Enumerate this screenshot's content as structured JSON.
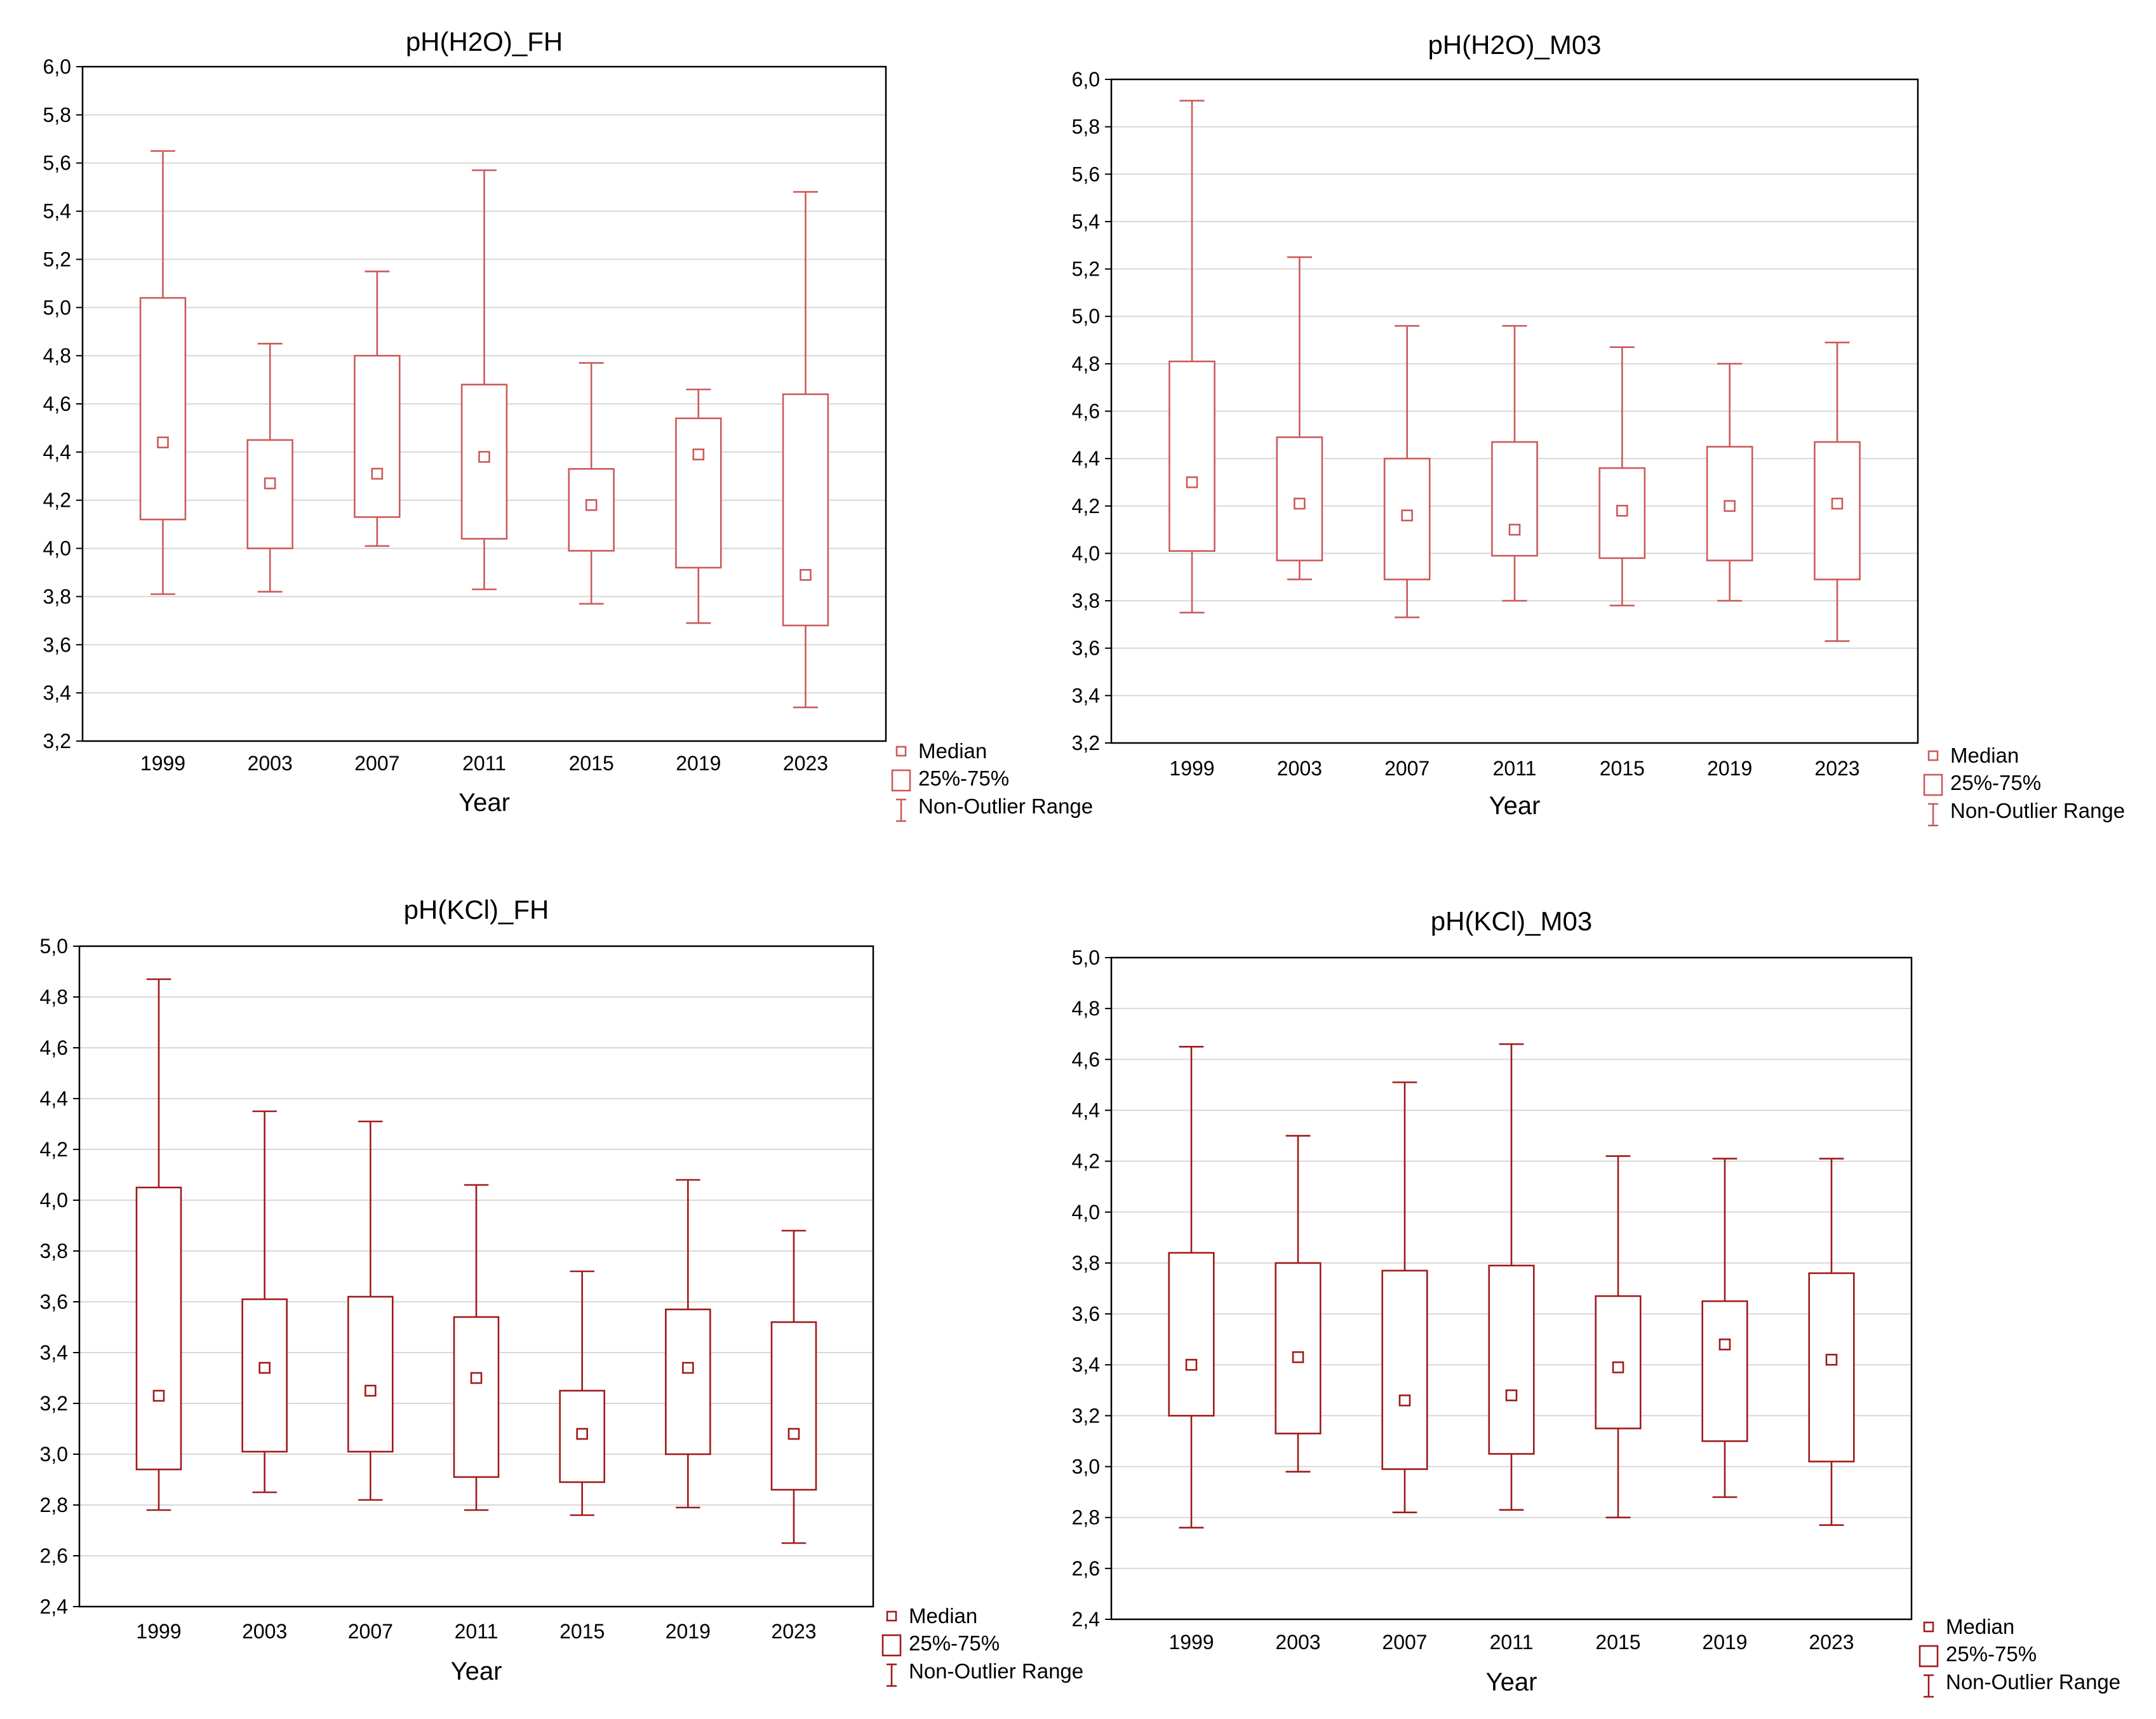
{
  "chart_data": [
    {
      "type": "box",
      "title": "pH(H2O)_FH",
      "xlabel": "Year",
      "ylabel": "",
      "ylim": [
        3.2,
        6.0
      ],
      "yticks": [
        "6,0",
        "5,8",
        "5,6",
        "5,4",
        "5,2",
        "5,0",
        "4,8",
        "4,6",
        "4,4",
        "4,2",
        "4,0",
        "3,8",
        "3,6",
        "3,4",
        "3,2"
      ],
      "categories": [
        "1999",
        "2003",
        "2007",
        "2011",
        "2015",
        "2019",
        "2023"
      ],
      "median": [
        4.44,
        4.27,
        4.31,
        4.38,
        4.18,
        4.39,
        3.89
      ],
      "q1": [
        4.12,
        4.0,
        4.13,
        4.04,
        3.99,
        3.92,
        3.68
      ],
      "q3": [
        5.04,
        4.45,
        4.8,
        4.68,
        4.33,
        4.54,
        4.64
      ],
      "min": [
        3.81,
        3.82,
        4.01,
        3.83,
        3.77,
        3.69,
        3.34
      ],
      "max": [
        5.65,
        4.85,
        5.15,
        5.57,
        4.77,
        4.66,
        5.48
      ],
      "color": "#cc5a5a",
      "grid": true,
      "legend": [
        "Median",
        "25%-75%",
        "Non-Outlier Range"
      ],
      "legend_position": "bottom-right"
    },
    {
      "type": "box",
      "title": "pH(H2O)_M03",
      "xlabel": "Year",
      "ylabel": "",
      "ylim": [
        3.2,
        6.0
      ],
      "yticks": [
        "6,0",
        "5,8",
        "5,6",
        "5,4",
        "5,2",
        "5,0",
        "4,8",
        "4,6",
        "4,4",
        "4,2",
        "4,0",
        "3,8",
        "3,6",
        "3,4",
        "3,2"
      ],
      "categories": [
        "1999",
        "2003",
        "2007",
        "2011",
        "2015",
        "2019",
        "2023"
      ],
      "median": [
        4.3,
        4.21,
        4.16,
        4.1,
        4.18,
        4.2,
        4.21
      ],
      "q1": [
        4.01,
        3.97,
        3.89,
        3.99,
        3.98,
        3.97,
        3.89
      ],
      "q3": [
        4.81,
        4.49,
        4.4,
        4.47,
        4.36,
        4.45,
        4.47
      ],
      "min": [
        3.75,
        3.89,
        3.73,
        3.8,
        3.78,
        3.8,
        3.63
      ],
      "max": [
        5.91,
        5.25,
        4.96,
        4.96,
        4.87,
        4.8,
        4.89
      ],
      "color": "#cc5a5a",
      "grid": true,
      "legend": [
        "Median",
        "25%-75%",
        "Non-Outlier Range"
      ],
      "legend_position": "bottom-right"
    },
    {
      "type": "box",
      "title": "pH(KCl)_FH",
      "xlabel": "Year",
      "ylabel": "",
      "ylim": [
        2.4,
        5.0
      ],
      "yticks": [
        "5,0",
        "4,8",
        "4,6",
        "4,4",
        "4,2",
        "4,0",
        "3,8",
        "3,6",
        "3,4",
        "3,2",
        "3,0",
        "2,8",
        "2,6",
        "2,4"
      ],
      "categories": [
        "1999",
        "2003",
        "2007",
        "2011",
        "2015",
        "2019",
        "2023"
      ],
      "median": [
        3.23,
        3.34,
        3.25,
        3.3,
        3.08,
        3.34,
        3.08
      ],
      "q1": [
        2.94,
        3.01,
        3.01,
        2.91,
        2.89,
        3.0,
        2.86
      ],
      "q3": [
        4.05,
        3.61,
        3.62,
        3.54,
        3.25,
        3.57,
        3.52
      ],
      "min": [
        2.78,
        2.85,
        2.82,
        2.78,
        2.76,
        2.79,
        2.65
      ],
      "max": [
        4.87,
        4.35,
        4.31,
        4.06,
        3.72,
        4.08,
        3.88
      ],
      "color": "#a01a1a",
      "grid": true,
      "legend": [
        "Median",
        "25%-75%",
        "Non-Outlier Range"
      ],
      "legend_position": "bottom-right"
    },
    {
      "type": "box",
      "title": "pH(KCl)_M03",
      "xlabel": "Year",
      "ylabel": "",
      "ylim": [
        2.4,
        5.0
      ],
      "yticks": [
        "5,0",
        "4,8",
        "4,6",
        "4,4",
        "4,2",
        "4,0",
        "3,8",
        "3,6",
        "3,4",
        "3,2",
        "3,0",
        "2,8",
        "2,6",
        "2,4"
      ],
      "categories": [
        "1999",
        "2003",
        "2007",
        "2011",
        "2015",
        "2019",
        "2023"
      ],
      "median": [
        3.4,
        3.43,
        3.26,
        3.28,
        3.39,
        3.48,
        3.42
      ],
      "q1": [
        3.2,
        3.13,
        2.99,
        3.05,
        3.15,
        3.1,
        3.02
      ],
      "q3": [
        3.84,
        3.8,
        3.77,
        3.79,
        3.67,
        3.65,
        3.76
      ],
      "min": [
        2.76,
        2.98,
        2.82,
        2.83,
        2.8,
        2.88,
        2.77
      ],
      "max": [
        4.65,
        4.3,
        4.51,
        4.66,
        4.22,
        4.21,
        4.21
      ],
      "color": "#a01a1a",
      "grid": true,
      "legend": [
        "Median",
        "25%-75%",
        "Non-Outlier Range"
      ],
      "legend_position": "bottom-right"
    }
  ]
}
